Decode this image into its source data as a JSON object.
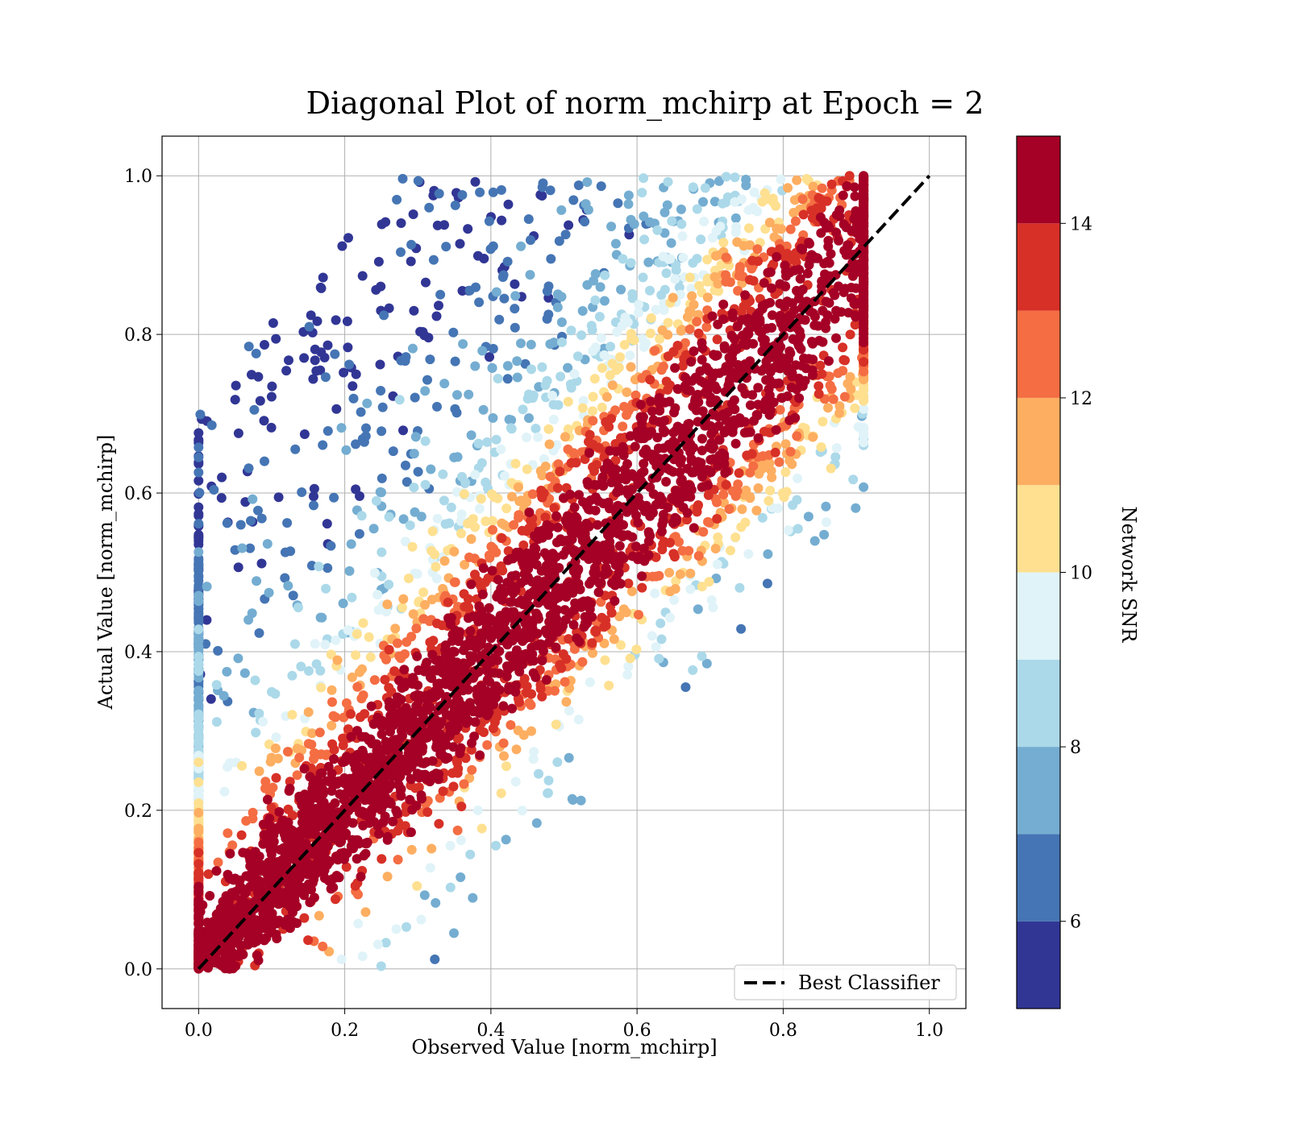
{
  "chart_data": {
    "type": "scatter",
    "title": "Diagonal Plot of norm_mchirp at Epoch = 2",
    "xlabel": "Observed Value [norm_mchirp]",
    "ylabel": "Actual Value [norm_mchirp]",
    "xlim": [
      -0.05,
      1.05
    ],
    "ylim": [
      -0.05,
      1.05
    ],
    "xticks": [
      "0.0",
      "0.2",
      "0.4",
      "0.6",
      "0.8",
      "1.0"
    ],
    "yticks": [
      "0.0",
      "0.2",
      "0.4",
      "0.6",
      "0.8",
      "1.0"
    ],
    "grid": true,
    "x_range_observed": [
      0.0,
      0.91
    ],
    "y_range_actual": [
      0.0,
      1.0
    ],
    "reference_line": {
      "name": "Best Classifier",
      "x": [
        0.0,
        1.0
      ],
      "y": [
        0.0,
        1.0
      ],
      "style": "dashed",
      "color": "#000000"
    },
    "legend": {
      "placement": "bottom-right",
      "entries": [
        "Best Classifier"
      ]
    },
    "colorbar": {
      "label": "Network SNR",
      "range": [
        5,
        15
      ],
      "ticks": [
        "6",
        "8",
        "10",
        "12",
        "14"
      ],
      "levels": [
        5,
        6,
        7,
        8,
        9,
        10,
        11,
        12,
        13,
        14,
        15
      ],
      "colors": [
        "#313695",
        "#4575b4",
        "#74add1",
        "#abd9e9",
        "#e0f3f8",
        "#fee090",
        "#fdae61",
        "#f46d43",
        "#d73027",
        "#a50026"
      ]
    },
    "snr_by_distance_from_diagonal": [
      {
        "abs_residual": 0.05,
        "snr": 15
      },
      {
        "abs_residual": 0.1,
        "snr": 13.5
      },
      {
        "abs_residual": 0.15,
        "snr": 11.5
      },
      {
        "abs_residual": 0.22,
        "snr": 9.0
      },
      {
        "abs_residual": 0.35,
        "snr": 7.0
      },
      {
        "abs_residual": 0.6,
        "snr": 5.5
      }
    ]
  }
}
